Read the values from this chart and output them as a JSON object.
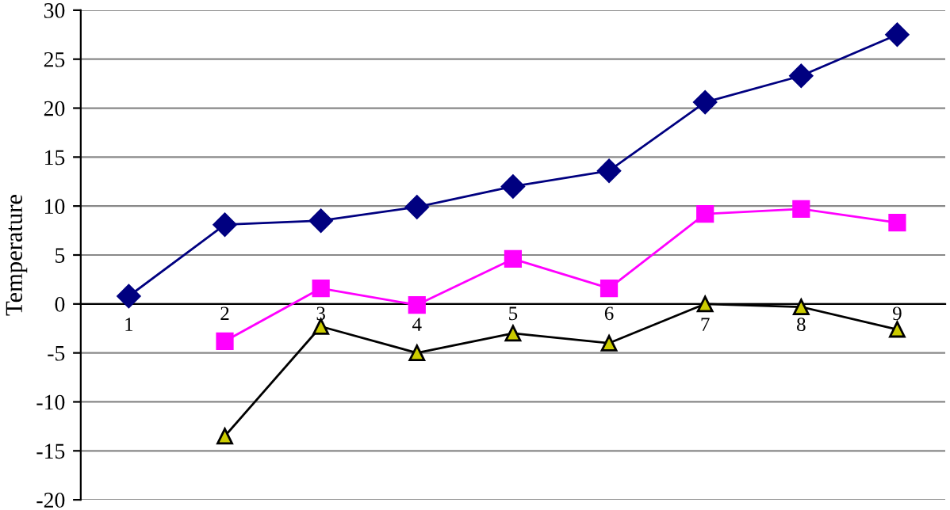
{
  "chart_data": {
    "type": "line",
    "ylabel": "Temperature",
    "categories": [
      "1",
      "2",
      "3",
      "4",
      "5",
      "6",
      "7",
      "8",
      "9"
    ],
    "series": [
      {
        "color": "#000080",
        "marker": "diamond",
        "values": [
          0.8,
          8.1,
          8.5,
          9.9,
          12.0,
          13.6,
          20.6,
          23.3,
          27.5
        ]
      },
      {
        "color": "#ff00ff",
        "marker": "square",
        "values": [
          null,
          -3.8,
          1.6,
          -0.1,
          4.6,
          1.6,
          9.2,
          9.7,
          8.3
        ]
      },
      {
        "color": "#000000",
        "marker": "triangle",
        "values": [
          null,
          -13.5,
          -2.3,
          -5.0,
          -3.0,
          -4.0,
          0.0,
          -0.3,
          -2.6
        ]
      }
    ],
    "ylim": [
      -20,
      30
    ],
    "yticks": [
      -20,
      -15,
      -10,
      -5,
      0,
      5,
      10,
      15,
      20,
      25,
      30
    ],
    "grid": "y",
    "line_style": "solid"
  }
}
